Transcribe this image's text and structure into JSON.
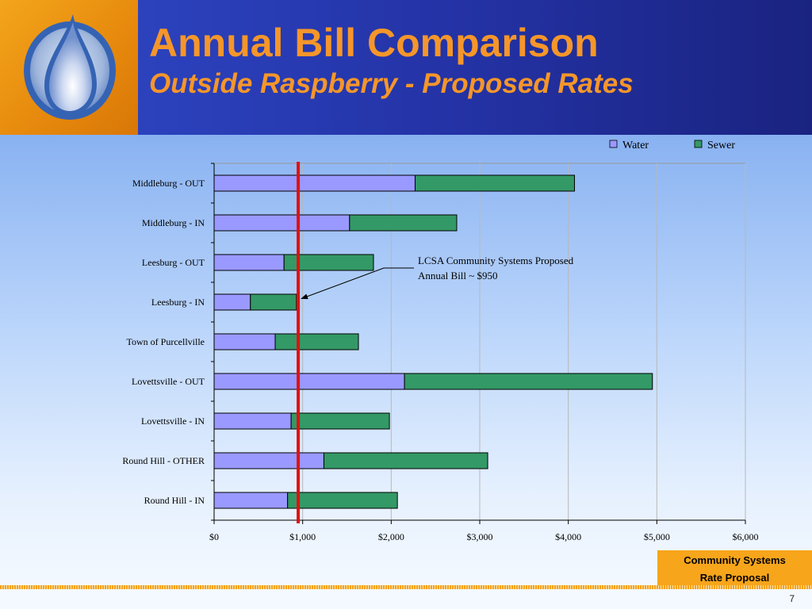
{
  "header": {
    "title": "Annual Bill Comparison",
    "subtitle": "Outside Raspberry - Proposed Rates",
    "logo_icon": "water-drop-icon"
  },
  "footer": {
    "line1": "Community Systems",
    "line2": "Rate Proposal",
    "page_number": "7"
  },
  "colors": {
    "water": "#9999ff",
    "sewer": "#339966",
    "reference_line": "#e01010",
    "title": "#f5962a",
    "footer_box": "#f7a51b"
  },
  "chart_data": {
    "type": "bar",
    "orientation": "horizontal",
    "stacked": true,
    "categories": [
      "Middleburg - OUT",
      "Middleburg - IN",
      "Leesburg - OUT",
      "Leesburg - IN",
      "Town of Purcellville",
      "Lovettsville - OUT",
      "Lovettsville - IN",
      "Round Hill - OTHER",
      "Round Hill - IN"
    ],
    "series": [
      {
        "name": "Water",
        "values": [
          2270,
          1530,
          790,
          410,
          690,
          2150,
          870,
          1240,
          830
        ]
      },
      {
        "name": "Sewer",
        "values": [
          1800,
          1210,
          1010,
          520,
          940,
          2800,
          1110,
          1850,
          1240
        ]
      }
    ],
    "xlim": [
      0,
      6000
    ],
    "x_ticks": [
      "$0",
      "$1,000",
      "$2,000",
      "$3,000",
      "$4,000",
      "$5,000",
      "$6,000"
    ],
    "x_tick_values": [
      0,
      1000,
      2000,
      3000,
      4000,
      5000,
      6000
    ],
    "grid": "vertical",
    "legend_position": "top-right",
    "reference_line": {
      "value": 950
    },
    "annotation": {
      "line1": "LCSA Community Systems Proposed",
      "line2": "Annual Bill ~ $950",
      "points_to_category": "Leesburg - IN"
    }
  }
}
